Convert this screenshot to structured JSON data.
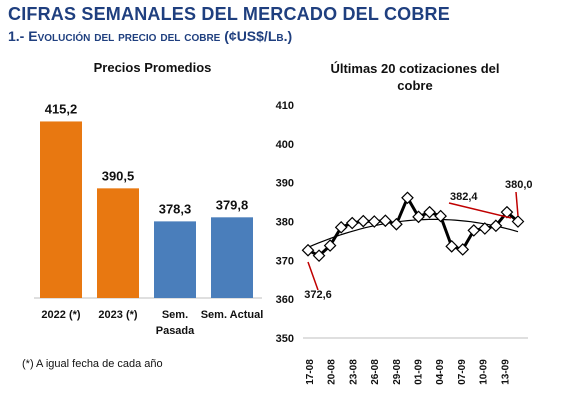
{
  "header": {
    "title": "CIFRAS SEMANALES DEL MERCADO DEL COBRE",
    "section": "1.- Evolución del precio del cobre (¢US$/Lb.)"
  },
  "colors": {
    "header": "#1f3f7f",
    "orange": "#e87811",
    "blue": "#4a7ebb",
    "line": "#000000"
  },
  "chart_data": [
    {
      "type": "bar",
      "title": "Precios Promedios",
      "categories": [
        "2022 (*)",
        "2023 (*)",
        "Sem. Pasada",
        "Sem. Actual"
      ],
      "values": [
        415.2,
        390.5,
        378.3,
        379.8
      ],
      "value_labels": [
        "415,2",
        "390,5",
        "378,3",
        "379,8"
      ],
      "category_lines": [
        [
          "2022 (*)"
        ],
        [
          "2023 (*)"
        ],
        [
          "Sem.",
          "Pasada"
        ],
        [
          "Sem. Actual"
        ]
      ],
      "colors": [
        "#e87811",
        "#e87811",
        "#4a7ebb",
        "#4a7ebb"
      ],
      "footnote": "(*) A igual fecha de cada año"
    },
    {
      "type": "line",
      "title": "Últimas 20 cotizaciones del cobre",
      "title_lines": [
        "Últimas 20 cotizaciones del",
        "cobre"
      ],
      "ylim": [
        350,
        410
      ],
      "yticks": [
        350,
        360,
        370,
        380,
        390,
        400,
        410
      ],
      "xtick_labels": [
        "17-08",
        "20-08",
        "23-08",
        "26-08",
        "29-08",
        "01-09",
        "04-09",
        "07-09",
        "10-09",
        "13-09"
      ],
      "series": [
        {
          "values": [
            372.6,
            371.2,
            373.8,
            378.5,
            379.6,
            380.1,
            380.0,
            380.2,
            379.3,
            386.1,
            381.2,
            382.4,
            381.4,
            373.6,
            372.8,
            377.7,
            378.2,
            378.9,
            382.4,
            380.0
          ]
        }
      ],
      "trendline": "polynomial",
      "annotations": [
        {
          "index": 0,
          "text": "372,6"
        },
        {
          "index": 18,
          "text": "382,4"
        },
        {
          "index": 19,
          "text": "380,0"
        }
      ]
    }
  ]
}
